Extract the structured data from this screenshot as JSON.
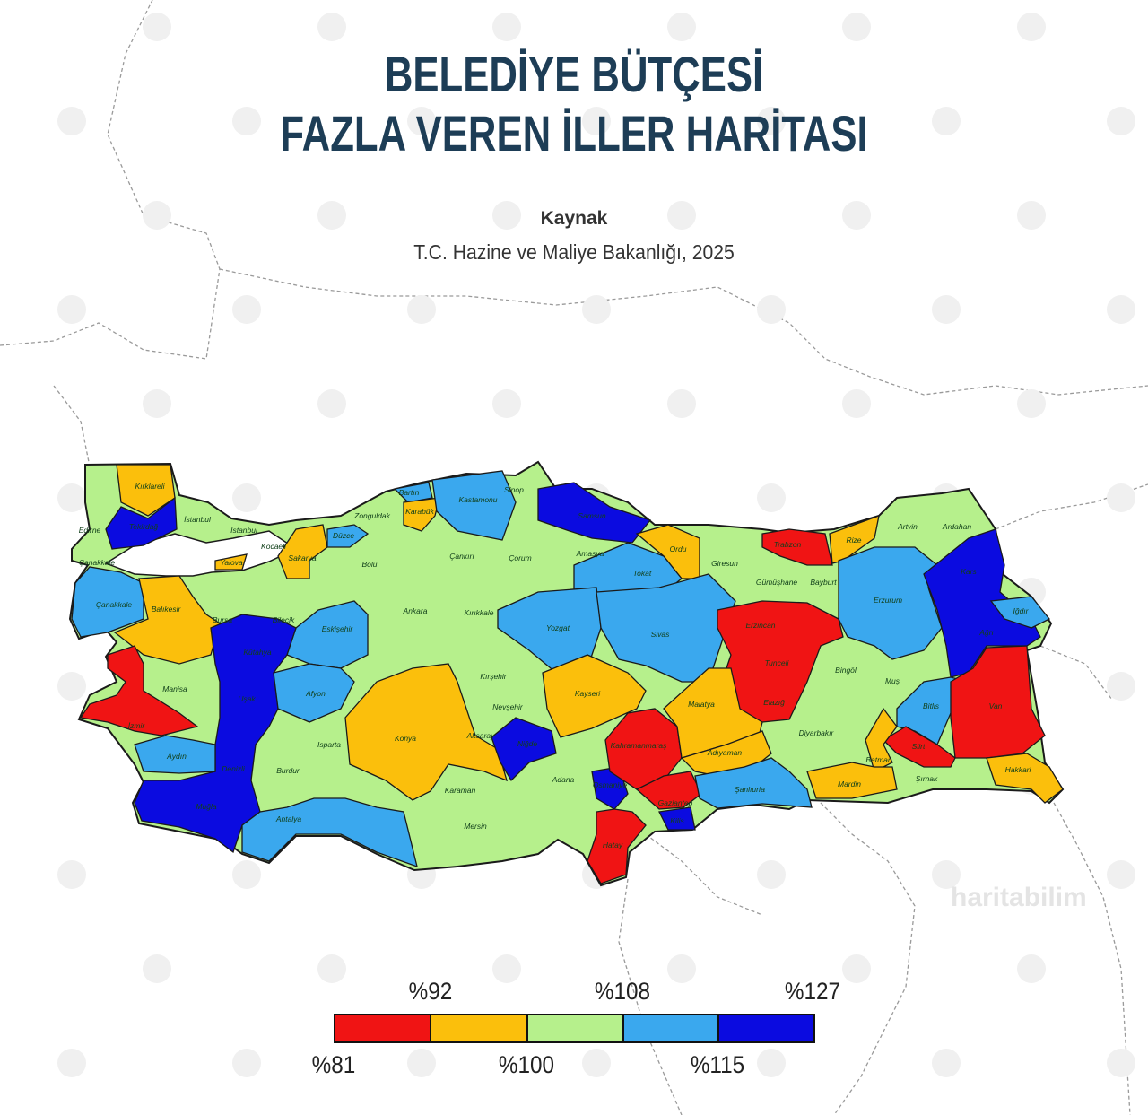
{
  "title": [
    "BELEDİYE BÜTÇESİ",
    "FAZLA VEREN İLLER HARİTASI"
  ],
  "source_heading": "Kaynak",
  "source": "T.C. Hazine ve Maliye Bakanlığı, 2025",
  "watermark": "haritabilim",
  "colors": {
    "c81": "#f01414",
    "c92": "#fbbf0c",
    "c100": "#b6f08c",
    "c108": "#3aa8ee",
    "c115": "#0b0be0"
  },
  "legend": {
    "colors": [
      "#f01414",
      "#fbbf0c",
      "#b6f08c",
      "#3aa8ee",
      "#0b0be0"
    ],
    "top_labels": [
      "%92",
      "%108",
      "%127"
    ],
    "bottom_labels": [
      "%81",
      "%100",
      "%115"
    ]
  },
  "provinces": [
    {
      "name": "Kırklareli",
      "cls": "c92"
    },
    {
      "name": "Tekirdağ",
      "cls": "c115"
    },
    {
      "name": "Edirne",
      "cls": "c100"
    },
    {
      "name": "İstanbul",
      "cls": "c100"
    },
    {
      "name": "İstanbul",
      "cls": "c100"
    },
    {
      "name": "Kocaeli",
      "cls": "c100"
    },
    {
      "name": "Yalova",
      "cls": "c92"
    },
    {
      "name": "Sakarya",
      "cls": "c92"
    },
    {
      "name": "Düzce",
      "cls": "c108"
    },
    {
      "name": "Bolu",
      "cls": "c100"
    },
    {
      "name": "Zonguldak",
      "cls": "c100"
    },
    {
      "name": "Bartın",
      "cls": "c108"
    },
    {
      "name": "Karabük",
      "cls": "c92"
    },
    {
      "name": "Kastamonu",
      "cls": "c108"
    },
    {
      "name": "Sinop",
      "cls": "c100"
    },
    {
      "name": "Samsun",
      "cls": "c115"
    },
    {
      "name": "Çankırı",
      "cls": "c100"
    },
    {
      "name": "Çorum",
      "cls": "c100"
    },
    {
      "name": "Amasya",
      "cls": "c100"
    },
    {
      "name": "Ordu",
      "cls": "c92"
    },
    {
      "name": "Tokat",
      "cls": "c108"
    },
    {
      "name": "Giresun",
      "cls": "c100"
    },
    {
      "name": "Trabzon",
      "cls": "c81"
    },
    {
      "name": "Rize",
      "cls": "c92"
    },
    {
      "name": "Artvin",
      "cls": "c100"
    },
    {
      "name": "Ardahan",
      "cls": "c100"
    },
    {
      "name": "Gümüşhane",
      "cls": "c100"
    },
    {
      "name": "Bayburt",
      "cls": "c100"
    },
    {
      "name": "Erzurum",
      "cls": "c108"
    },
    {
      "name": "Kars",
      "cls": "c115"
    },
    {
      "name": "Iğdır",
      "cls": "c108"
    },
    {
      "name": "Ağrı",
      "cls": "c115"
    },
    {
      "name": "Çanakkale",
      "cls": "c108"
    },
    {
      "name": "Çanakkale",
      "cls": "c108"
    },
    {
      "name": "Balıkesir",
      "cls": "c92"
    },
    {
      "name": "Bursa",
      "cls": "c100"
    },
    {
      "name": "Bilecik",
      "cls": "c100"
    },
    {
      "name": "Eskişehir",
      "cls": "c108"
    },
    {
      "name": "Ankara",
      "cls": "c100"
    },
    {
      "name": "Kırıkkale",
      "cls": "c100"
    },
    {
      "name": "Yozgat",
      "cls": "c108"
    },
    {
      "name": "Sivas",
      "cls": "c108"
    },
    {
      "name": "Erzincan",
      "cls": "c81"
    },
    {
      "name": "Tunceli",
      "cls": "c81"
    },
    {
      "name": "Elazığ",
      "cls": "c81"
    },
    {
      "name": "Bingöl",
      "cls": "c100"
    },
    {
      "name": "Muş",
      "cls": "c100"
    },
    {
      "name": "Bitlis",
      "cls": "c108"
    },
    {
      "name": "Van",
      "cls": "c81"
    },
    {
      "name": "Siirt",
      "cls": "c81"
    },
    {
      "name": "Manisa",
      "cls": "c100"
    },
    {
      "name": "İzmir",
      "cls": "c81"
    },
    {
      "name": "Kütahya",
      "cls": "c115"
    },
    {
      "name": "Uşak",
      "cls": "c115"
    },
    {
      "name": "Afyon",
      "cls": "c108"
    },
    {
      "name": "Aydın",
      "cls": "c108"
    },
    {
      "name": "Denizli",
      "cls": "c115"
    },
    {
      "name": "Muğla",
      "cls": "c115"
    },
    {
      "name": "Isparta",
      "cls": "c100"
    },
    {
      "name": "Burdur",
      "cls": "c100"
    },
    {
      "name": "Antalya",
      "cls": "c108"
    },
    {
      "name": "Konya",
      "cls": "c92"
    },
    {
      "name": "Kırşehir",
      "cls": "c100"
    },
    {
      "name": "Nevşehir",
      "cls": "c100"
    },
    {
      "name": "Aksaray",
      "cls": "c100"
    },
    {
      "name": "Niğde",
      "cls": "c115"
    },
    {
      "name": "Kayseri",
      "cls": "c92"
    },
    {
      "name": "Karaman",
      "cls": "c100"
    },
    {
      "name": "Mersin",
      "cls": "c100"
    },
    {
      "name": "Adana",
      "cls": "c100"
    },
    {
      "name": "Osmaniye",
      "cls": "c115"
    },
    {
      "name": "Kahramanmaraş",
      "cls": "c81"
    },
    {
      "name": "Gaziantep",
      "cls": "c81"
    },
    {
      "name": "Kilis",
      "cls": "c115"
    },
    {
      "name": "Hatay",
      "cls": "c81"
    },
    {
      "name": "Malatya",
      "cls": "c92"
    },
    {
      "name": "Adıyaman",
      "cls": "c92"
    },
    {
      "name": "Şanlıurfa",
      "cls": "c108"
    },
    {
      "name": "Diyarbakır",
      "cls": "c100"
    },
    {
      "name": "Batman",
      "cls": "c92"
    },
    {
      "name": "Mardin",
      "cls": "c92"
    },
    {
      "name": "Şırnak",
      "cls": "c100"
    },
    {
      "name": "Hakkari",
      "cls": "c92"
    }
  ]
}
